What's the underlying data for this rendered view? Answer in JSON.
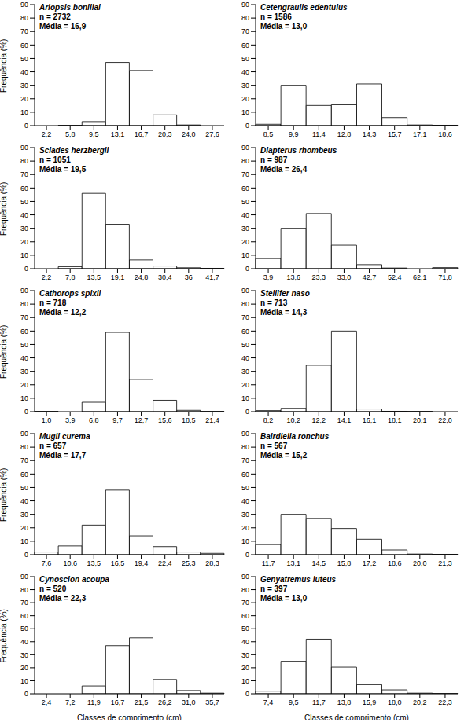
{
  "chart_data": [
    {
      "type": "bar",
      "title": "Ariopsis bonillai",
      "annotations": [
        "n = 2732",
        "Média = 16,9"
      ],
      "y_label": "Frequência (%)",
      "categories": [
        "2,2",
        "5,8",
        "9,5",
        "13,1",
        "16,7",
        "20,3",
        "24,0",
        "27,6"
      ],
      "values": [
        0,
        0.2,
        3,
        47,
        41,
        8,
        0.5,
        0
      ],
      "color": "#ffffff",
      "ylim": [
        0,
        90
      ],
      "yticks": [
        0,
        10,
        20,
        30,
        40,
        50,
        60,
        70,
        80,
        90
      ],
      "grid": false
    },
    {
      "type": "bar",
      "title": "Cetengraulis edentulus",
      "annotations": [
        "n = 1586",
        "Média = 13,0"
      ],
      "categories": [
        "8,5",
        "9,9",
        "11,4",
        "12,8",
        "14,3",
        "15,7",
        "17,1",
        "18,6"
      ],
      "values": [
        1,
        30,
        15,
        15.5,
        31,
        6,
        0.5,
        0.3
      ],
      "color": "#ffffff",
      "ylim": [
        0,
        90
      ],
      "yticks": [
        0,
        10,
        20,
        30,
        40,
        50,
        60,
        70,
        80,
        90
      ],
      "grid": false
    },
    {
      "type": "bar",
      "title": "Sciades herzbergii",
      "annotations": [
        "n = 1051",
        "Média = 19,5"
      ],
      "y_label": "Frequência (%)",
      "categories": [
        "2,2",
        "7,8",
        "13,5",
        "19,1",
        "24,8",
        "30,4",
        "36",
        "41,7"
      ],
      "values": [
        0,
        1.5,
        56,
        33,
        6.5,
        2,
        0.7,
        0.3
      ],
      "color": "#ffffff",
      "ylim": [
        0,
        90
      ],
      "yticks": [
        0,
        10,
        20,
        30,
        40,
        50,
        60,
        70,
        80,
        90
      ],
      "grid": false
    },
    {
      "type": "bar",
      "title": "Diapterus rhombeus",
      "annotations": [
        "n = 987",
        "Média = 26,4"
      ],
      "categories": [
        "3,9",
        "13,6",
        "23,3",
        "33,0",
        "42,7",
        "52,4",
        "62,1",
        "71,8"
      ],
      "values": [
        7.5,
        30,
        41,
        17.5,
        3,
        0.5,
        0,
        0.8
      ],
      "color": "#ffffff",
      "ylim": [
        0,
        90
      ],
      "yticks": [
        0,
        10,
        20,
        30,
        40,
        50,
        60,
        70,
        80,
        90
      ],
      "grid": false
    },
    {
      "type": "bar",
      "title": "Cathorops spixii",
      "annotations": [
        "n = 718",
        "Média = 12,2"
      ],
      "y_label": "Frequência (%)",
      "categories": [
        "1,0",
        "3,9",
        "6,8",
        "9,7",
        "12,7",
        "15,6",
        "18,5",
        "21,4"
      ],
      "values": [
        0.2,
        0,
        7,
        59,
        24,
        8.5,
        1,
        0.2
      ],
      "color": "#ffffff",
      "ylim": [
        0,
        90
      ],
      "yticks": [
        0,
        10,
        20,
        30,
        40,
        50,
        60,
        70,
        80,
        90
      ],
      "grid": false
    },
    {
      "type": "bar",
      "title": "Stellifer naso",
      "annotations": [
        "n = 713",
        "Média = 14,3"
      ],
      "categories": [
        "8,2",
        "10,2",
        "12,2",
        "14,1",
        "16,1",
        "18,1",
        "20,1",
        "22,0"
      ],
      "values": [
        0.8,
        2.5,
        34.5,
        60,
        2,
        0.3,
        0.2,
        0
      ],
      "color": "#ffffff",
      "ylim": [
        0,
        90
      ],
      "yticks": [
        0,
        10,
        20,
        30,
        40,
        50,
        60,
        70,
        80,
        90
      ],
      "grid": false
    },
    {
      "type": "bar",
      "title": "Mugil curema",
      "annotations": [
        "n = 657",
        "Média = 17,7"
      ],
      "y_label": "Frequência (%)",
      "categories": [
        "7,6",
        "10,6",
        "13,5",
        "16,5",
        "19,4",
        "22,4",
        "25,3",
        "28,3"
      ],
      "values": [
        2,
        6.5,
        22,
        48,
        14,
        6,
        2,
        1
      ],
      "color": "#ffffff",
      "ylim": [
        0,
        90
      ],
      "yticks": [
        0,
        10,
        20,
        30,
        40,
        50,
        60,
        70,
        80,
        90
      ],
      "grid": false
    },
    {
      "type": "bar",
      "title": "Bairdiella ronchus",
      "annotations": [
        "n = 567",
        "Média = 15,2"
      ],
      "categories": [
        "11,7",
        "13,1",
        "14,5",
        "15,8",
        "17,2",
        "18,6",
        "20,0",
        "21,3"
      ],
      "values": [
        7.5,
        30,
        27,
        19.5,
        11.5,
        3.5,
        0.5,
        0.3
      ],
      "color": "#ffffff",
      "ylim": [
        0,
        90
      ],
      "yticks": [
        0,
        10,
        20,
        30,
        40,
        50,
        60,
        70,
        80,
        90
      ],
      "grid": false
    },
    {
      "type": "bar",
      "title": "Cynoscion acoupa",
      "annotations": [
        "n = 520",
        "Média = 22,3"
      ],
      "y_label": "Frequência (%)",
      "x_label": "Classes de comprimento (cm)",
      "categories": [
        "2,4",
        "7,2",
        "11,9",
        "16,7",
        "21,5",
        "26,2",
        "31,0",
        "35,7"
      ],
      "values": [
        0,
        0,
        6,
        37,
        43,
        11,
        2.5,
        0.5
      ],
      "color": "#ffffff",
      "ylim": [
        0,
        90
      ],
      "yticks": [
        0,
        10,
        20,
        30,
        40,
        50,
        60,
        70,
        80,
        90
      ],
      "grid": false
    },
    {
      "type": "bar",
      "title": "Genyatremus luteus",
      "annotations": [
        "n = 397",
        "Média = 13,0"
      ],
      "x_label": "Classes de comprimento (cm)",
      "categories": [
        "7,4",
        "9,5",
        "11,7",
        "13,8",
        "15,9",
        "18,0",
        "20,2",
        "22,3"
      ],
      "values": [
        2,
        25,
        42,
        20.5,
        7,
        3,
        0.5,
        0.2
      ],
      "color": "#ffffff",
      "ylim": [
        0,
        90
      ],
      "yticks": [
        0,
        10,
        20,
        30,
        40,
        50,
        60,
        70,
        80,
        90
      ],
      "grid": false
    }
  ]
}
